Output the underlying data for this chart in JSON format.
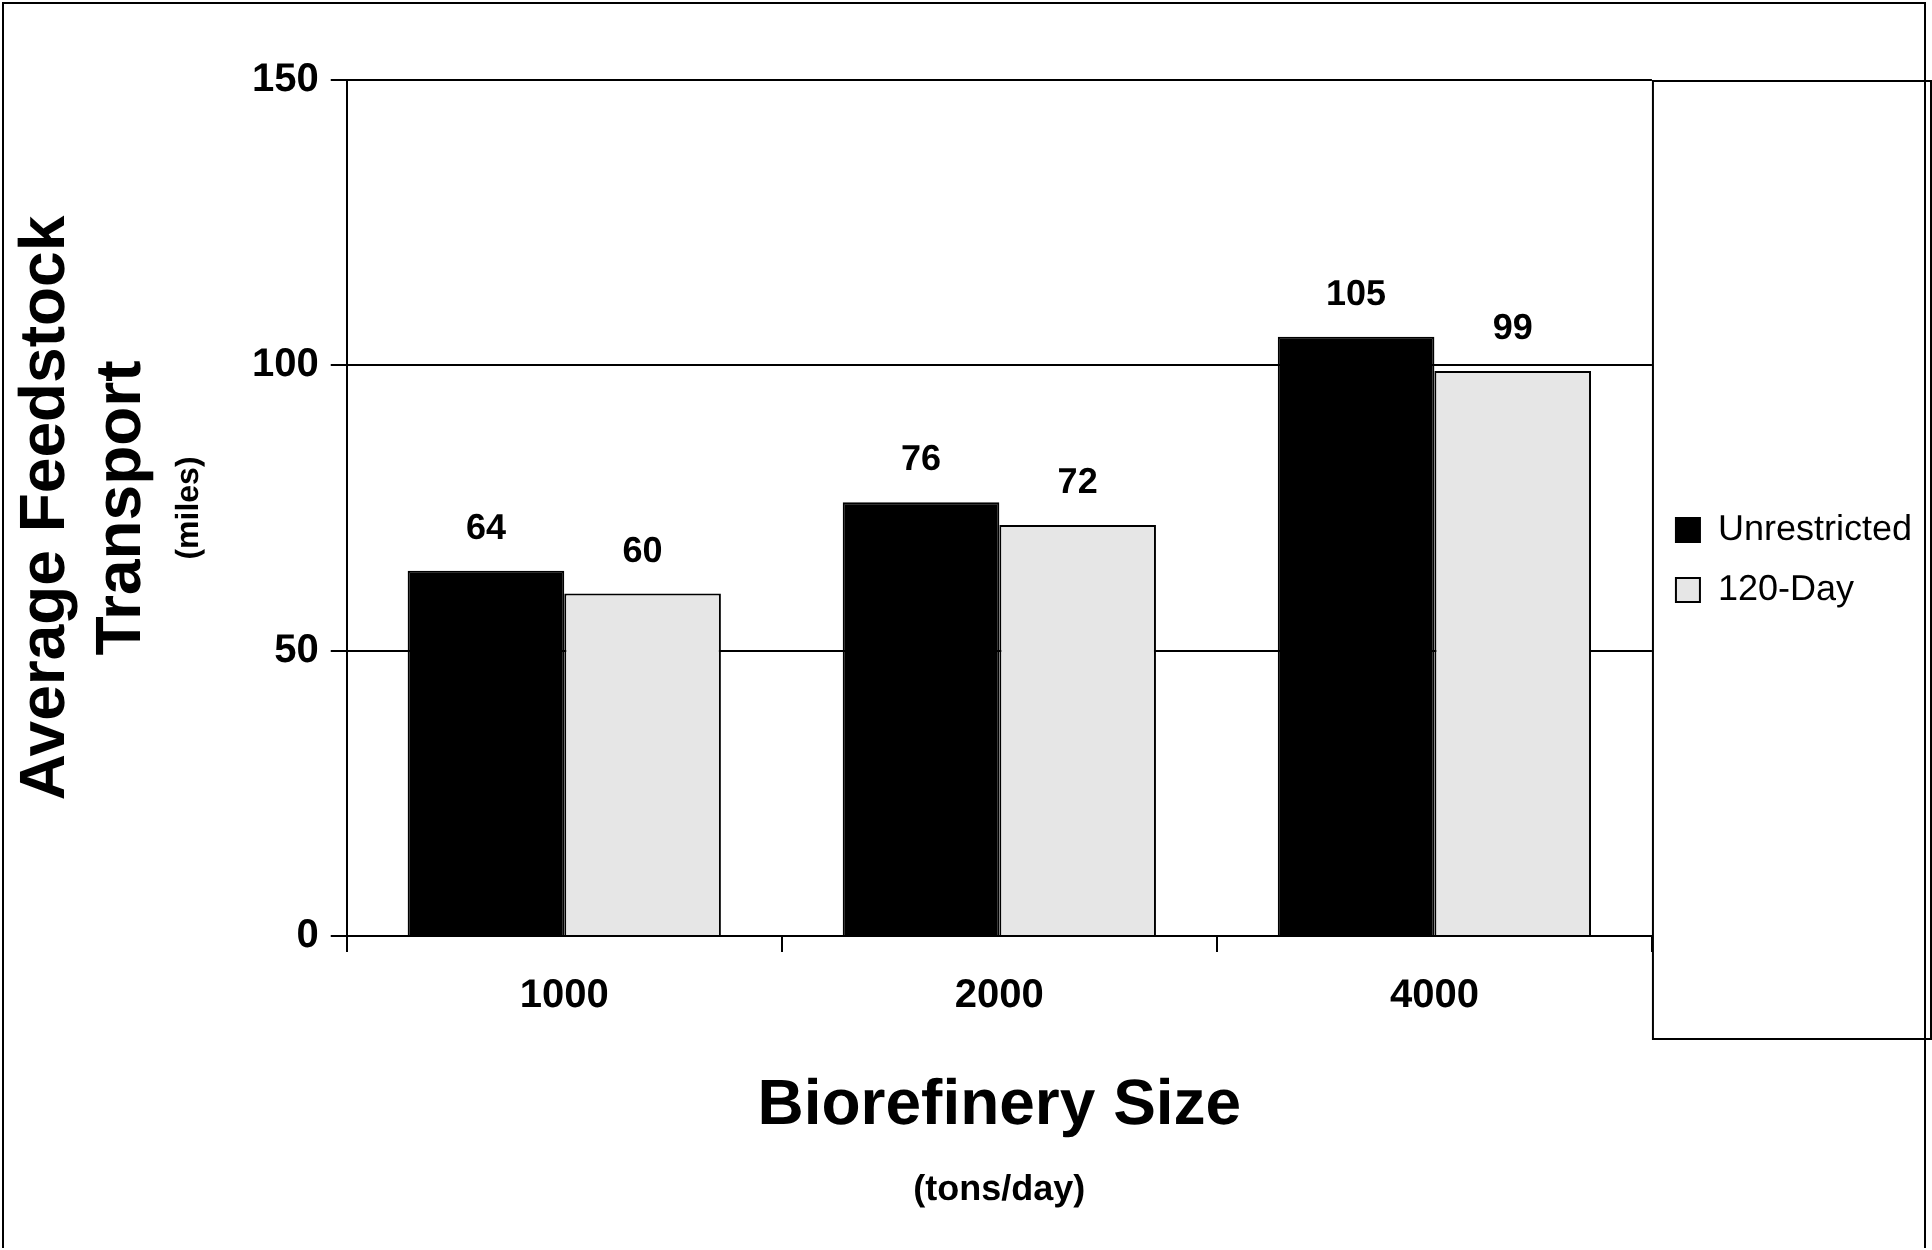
{
  "chart_data": {
    "type": "bar",
    "xlabel": "Biorefinery Size\n(tons/day)",
    "ylabel": "Average Feedstock\nTransport\n(miles)",
    "categories": [
      "1000",
      "2000",
      "4000"
    ],
    "series": [
      {
        "name": "Unrestricted",
        "color": "#000000",
        "values": [
          64,
          76,
          105
        ]
      },
      {
        "name": "120-Day",
        "color": "#e6e6e6",
        "values": [
          60,
          72,
          99
        ]
      }
    ],
    "ylim": [
      0,
      150
    ],
    "yticks": [
      0,
      50,
      100,
      150
    ],
    "grid": "y",
    "legend": "right",
    "data_labels": true
  }
}
